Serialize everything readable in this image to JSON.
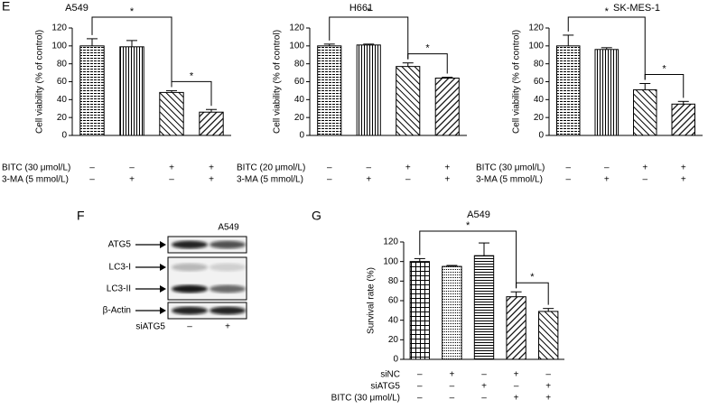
{
  "panel_labels": [
    "E",
    "F",
    "G"
  ],
  "chart_data": [
    {
      "type": "bar",
      "title": "A549",
      "ylabel": "Cell viability (% of control)",
      "color": "#000000",
      "values": [
        100,
        99,
        48,
        26
      ],
      "errors": [
        8,
        7,
        2,
        3
      ],
      "ylim": [
        0,
        120
      ],
      "yticks": [
        0,
        20,
        40,
        60,
        80,
        100,
        120
      ],
      "conditions": [
        {
          "name": "BITC (30 μmol/L)",
          "marks": [
            "–",
            "–",
            "+",
            "+"
          ]
        },
        {
          "name": "3-MA (5 mmol/L)",
          "marks": [
            "–",
            "+",
            "–",
            "+"
          ]
        }
      ],
      "annotations": [
        "*",
        "*"
      ]
    },
    {
      "type": "bar",
      "title": "H661",
      "ylabel": "Cell viability (% of control)",
      "color": "#000000",
      "values": [
        100,
        101,
        77,
        64
      ],
      "errors": [
        2,
        1,
        4,
        1
      ],
      "ylim": [
        0,
        120
      ],
      "yticks": [
        0,
        20,
        40,
        60,
        80,
        100,
        120
      ],
      "conditions": [
        {
          "name": "BITC (20 μmol/L)",
          "marks": [
            "–",
            "–",
            "+",
            "+"
          ]
        },
        {
          "name": "3-MA (5 mmol/L)",
          "marks": [
            "–",
            "+",
            "–",
            "+"
          ]
        }
      ],
      "annotations": [
        "*",
        "*"
      ]
    },
    {
      "type": "bar",
      "title": "SK-MES-1",
      "ylabel": "Cell viability (% of control)",
      "color": "#000000",
      "values": [
        100,
        96,
        51,
        35
      ],
      "errors": [
        12,
        2,
        7,
        3
      ],
      "ylim": [
        0,
        120
      ],
      "yticks": [
        0,
        20,
        40,
        60,
        80,
        100,
        120
      ],
      "conditions": [
        {
          "name": "BITC (30 μmol/L)",
          "marks": [
            "–",
            "–",
            "+",
            "+"
          ]
        },
        {
          "name": "3-MA (5 mmol/L)",
          "marks": [
            "–",
            "+",
            "–",
            "+"
          ]
        }
      ],
      "annotations": [
        "*",
        "*"
      ]
    },
    {
      "type": "bar",
      "title": "A549",
      "ylabel": "Survival rate (%)",
      "color": "#000000",
      "values": [
        100,
        95,
        106,
        64,
        49
      ],
      "errors": [
        3,
        1,
        13,
        5,
        3
      ],
      "ylim": [
        0,
        120
      ],
      "yticks": [
        0,
        20,
        40,
        60,
        80,
        100,
        120
      ],
      "conditions": [
        {
          "name": "siNC",
          "marks": [
            "–",
            "+",
            "–",
            "+",
            "–"
          ]
        },
        {
          "name": "siATG5",
          "marks": [
            "–",
            "–",
            "+",
            "–",
            "+"
          ]
        },
        {
          "name": "BITC (30 μmol/L)",
          "marks": [
            "–",
            "–",
            "–",
            "+",
            "+"
          ]
        }
      ],
      "annotations": [
        "*",
        "*"
      ]
    }
  ],
  "blot": {
    "title": "A549",
    "rows": [
      "ATG5",
      "LC3-I",
      "LC3-II",
      "β-Actin"
    ],
    "condition": {
      "name": "siATG5",
      "marks": [
        "–",
        "+"
      ]
    }
  }
}
